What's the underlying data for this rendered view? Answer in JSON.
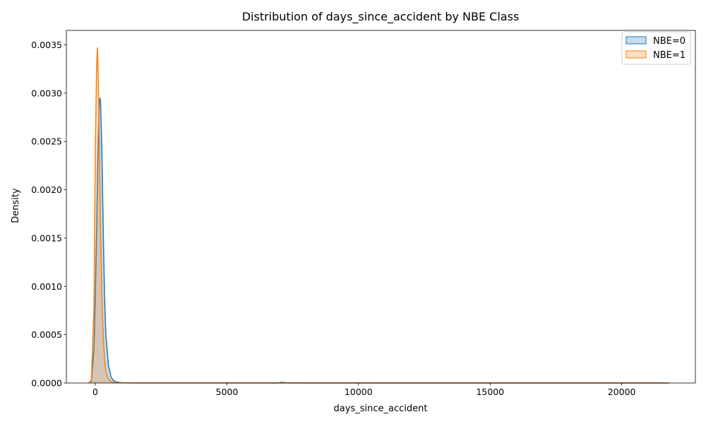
{
  "chart_data": {
    "type": "area",
    "title": "Distribution of days_since_accident by NBE Class",
    "xlabel": "days_since_accident",
    "ylabel": "Density",
    "xlim": [
      -1100,
      22800
    ],
    "ylim": [
      0,
      0.00365
    ],
    "xticks": [
      0,
      5000,
      10000,
      15000,
      20000
    ],
    "xtick_labels": [
      "0",
      "5000",
      "10000",
      "15000",
      "20000"
    ],
    "yticks": [
      0,
      0.0005,
      0.001,
      0.0015,
      0.002,
      0.0025,
      0.003,
      0.0035
    ],
    "ytick_labels": [
      "0.0000",
      "0.0005",
      "0.0010",
      "0.0015",
      "0.0020",
      "0.0025",
      "0.0030",
      "0.0035"
    ],
    "grid": false,
    "legend_position": "top-right",
    "series": [
      {
        "name": "NBE=0",
        "line_color": "#1f77b4",
        "fill_color": "#1f77b4",
        "x": [
          -250,
          -150,
          -50,
          0,
          50,
          100,
          150,
          180,
          200,
          250,
          300,
          350,
          400,
          500,
          600,
          700,
          800,
          1000,
          1500,
          3000,
          6900,
          7100,
          7300,
          10000,
          15000,
          20000,
          21800
        ],
        "y": [
          0,
          2e-05,
          0.00035,
          0.0009,
          0.0016,
          0.0024,
          0.0029,
          0.00295,
          0.0029,
          0.0024,
          0.0016,
          0.0009,
          0.0005,
          0.00018,
          6e-05,
          2.5e-05,
          1e-05,
          4e-06,
          1e-06,
          5e-07,
          1e-06,
          7e-06,
          1e-06,
          5e-07,
          3e-07,
          3e-07,
          0
        ]
      },
      {
        "name": "NBE=1",
        "line_color": "#ff7f0e",
        "fill_color": "#ff7f0e",
        "x": [
          -250,
          -150,
          -50,
          0,
          50,
          80,
          110,
          150,
          200,
          250,
          300,
          350,
          400,
          500,
          600,
          700,
          800,
          1000,
          1500,
          3000,
          7000,
          10000,
          15000,
          20000,
          21800
        ],
        "y": [
          0,
          3e-05,
          0.0008,
          0.0024,
          0.0033,
          0.00347,
          0.0032,
          0.0025,
          0.0016,
          0.0009,
          0.0005,
          0.00025,
          0.00012,
          4e-05,
          1.5e-05,
          6e-06,
          3e-06,
          2e-06,
          1e-06,
          5e-07,
          5e-07,
          4e-07,
          3e-07,
          3e-07,
          0
        ]
      }
    ]
  }
}
